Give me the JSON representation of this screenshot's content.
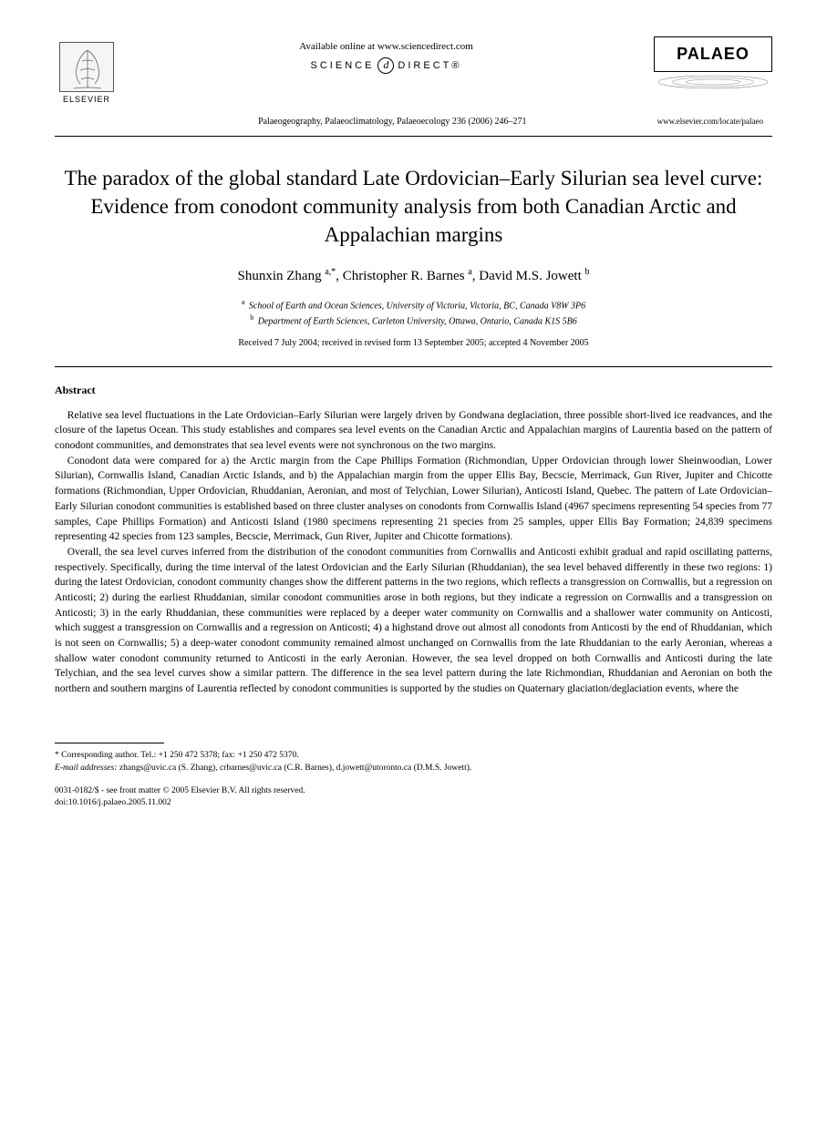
{
  "header": {
    "publisher_name": "ELSEVIER",
    "available_text": "Available online at www.sciencedirect.com",
    "science_direct_left": "SCIENCE",
    "science_direct_icon": "d",
    "science_direct_right": "DIRECT®",
    "journal_logo": "PALAEO",
    "journal_reference": "Palaeogeography, Palaeoclimatology, Palaeoecology 236 (2006) 246–271",
    "journal_url": "www.elsevier.com/locate/palaeo"
  },
  "article": {
    "title": "The paradox of the global standard Late Ordovician–Early Silurian sea level curve: Evidence from conodont community analysis from both Canadian Arctic and Appalachian margins",
    "authors_html": "Shunxin Zhang <sup>a,*</sup>, Christopher R. Barnes <sup>a</sup>, David M.S. Jowett <sup>b</sup>",
    "affiliations": [
      {
        "marker": "a",
        "text": "School of Earth and Ocean Sciences, University of Victoria, Victoria, BC, Canada V8W 3P6"
      },
      {
        "marker": "b",
        "text": "Department of Earth Sciences, Carleton University, Ottawa, Ontario, Canada K1S 5B6"
      }
    ],
    "dates": "Received 7 July 2004; received in revised form 13 September 2005; accepted 4 November 2005"
  },
  "abstract": {
    "heading": "Abstract",
    "paragraphs": [
      "Relative sea level fluctuations in the Late Ordovician–Early Silurian were largely driven by Gondwana deglaciation, three possible short-lived ice readvances, and the closure of the Iapetus Ocean. This study establishes and compares sea level events on the Canadian Arctic and Appalachian margins of Laurentia based on the pattern of conodont communities, and demonstrates that sea level events were not synchronous on the two margins.",
      "Conodont data were compared for a) the Arctic margin from the Cape Phillips Formation (Richmondian, Upper Ordovician through lower Sheinwoodian, Lower Silurian), Cornwallis Island, Canadian Arctic Islands, and b) the Appalachian margin from the upper Ellis Bay, Becscie, Merrimack, Gun River, Jupiter and Chicotte formations (Richmondian, Upper Ordovician, Rhuddanian, Aeronian, and most of Telychian, Lower Silurian), Anticosti Island, Quebec. The pattern of Late Ordovician–Early Silurian conodont communities is established based on three cluster analyses on conodonts from Cornwallis Island (4967 specimens representing 54 species from 77 samples, Cape Phillips Formation) and Anticosti Island (1980 specimens representing 21 species from 25 samples, upper Ellis Bay Formation; 24,839 specimens representing 42 species from 123 samples, Becscie, Merrimack, Gun River, Jupiter and Chicotte formations).",
      "Overall, the sea level curves inferred from the distribution of the conodont communities from Cornwallis and Anticosti exhibit gradual and rapid oscillating patterns, respectively. Specifically, during the time interval of the latest Ordovician and the Early Silurian (Rhuddanian), the sea level behaved differently in these two regions: 1) during the latest Ordovician, conodont community changes show the different patterns in the two regions, which reflects a transgression on Cornwallis, but a regression on Anticosti; 2) during the earliest Rhuddanian, similar conodont communities arose in both regions, but they indicate a regression on Cornwallis and a transgression on Anticosti; 3) in the early Rhuddanian, these communities were replaced by a deeper water community on Cornwallis and a shallower water community on Anticosti, which suggest a transgression on Cornwallis and a regression on Anticosti; 4) a highstand drove out almost all conodonts from Anticosti by the end of Rhuddanian, which is not seen on Cornwallis; 5) a deep-water conodont community remained almost unchanged on Cornwallis from the late Rhuddanian to the early Aeronian, whereas a shallow water conodont community returned to Anticosti in the early Aeronian. However, the sea level dropped on both Cornwallis and Anticosti during the late Telychian, and the sea level curves show a similar pattern. The difference in the sea level pattern during the late Richmondian, Rhuddanian and Aeronian on both the northern and southern margins of Laurentia reflected by conodont communities is supported by the studies on Quaternary glaciation/deglaciation events, where the"
    ]
  },
  "footnote": {
    "corresponding": "* Corresponding author. Tel.: +1 250 472 5378; fax: +1 250 472 5370.",
    "email_label": "E-mail addresses:",
    "emails": "zhangs@uvic.ca (S. Zhang), crbarnes@uvic.ca (C.R. Barnes), d.jowett@utoronto.ca (D.M.S. Jowett)."
  },
  "copyright": {
    "line1": "0031-0182/$ - see front matter © 2005 Elsevier B.V. All rights reserved.",
    "line2": "doi:10.1016/j.palaeo.2005.11.002"
  }
}
